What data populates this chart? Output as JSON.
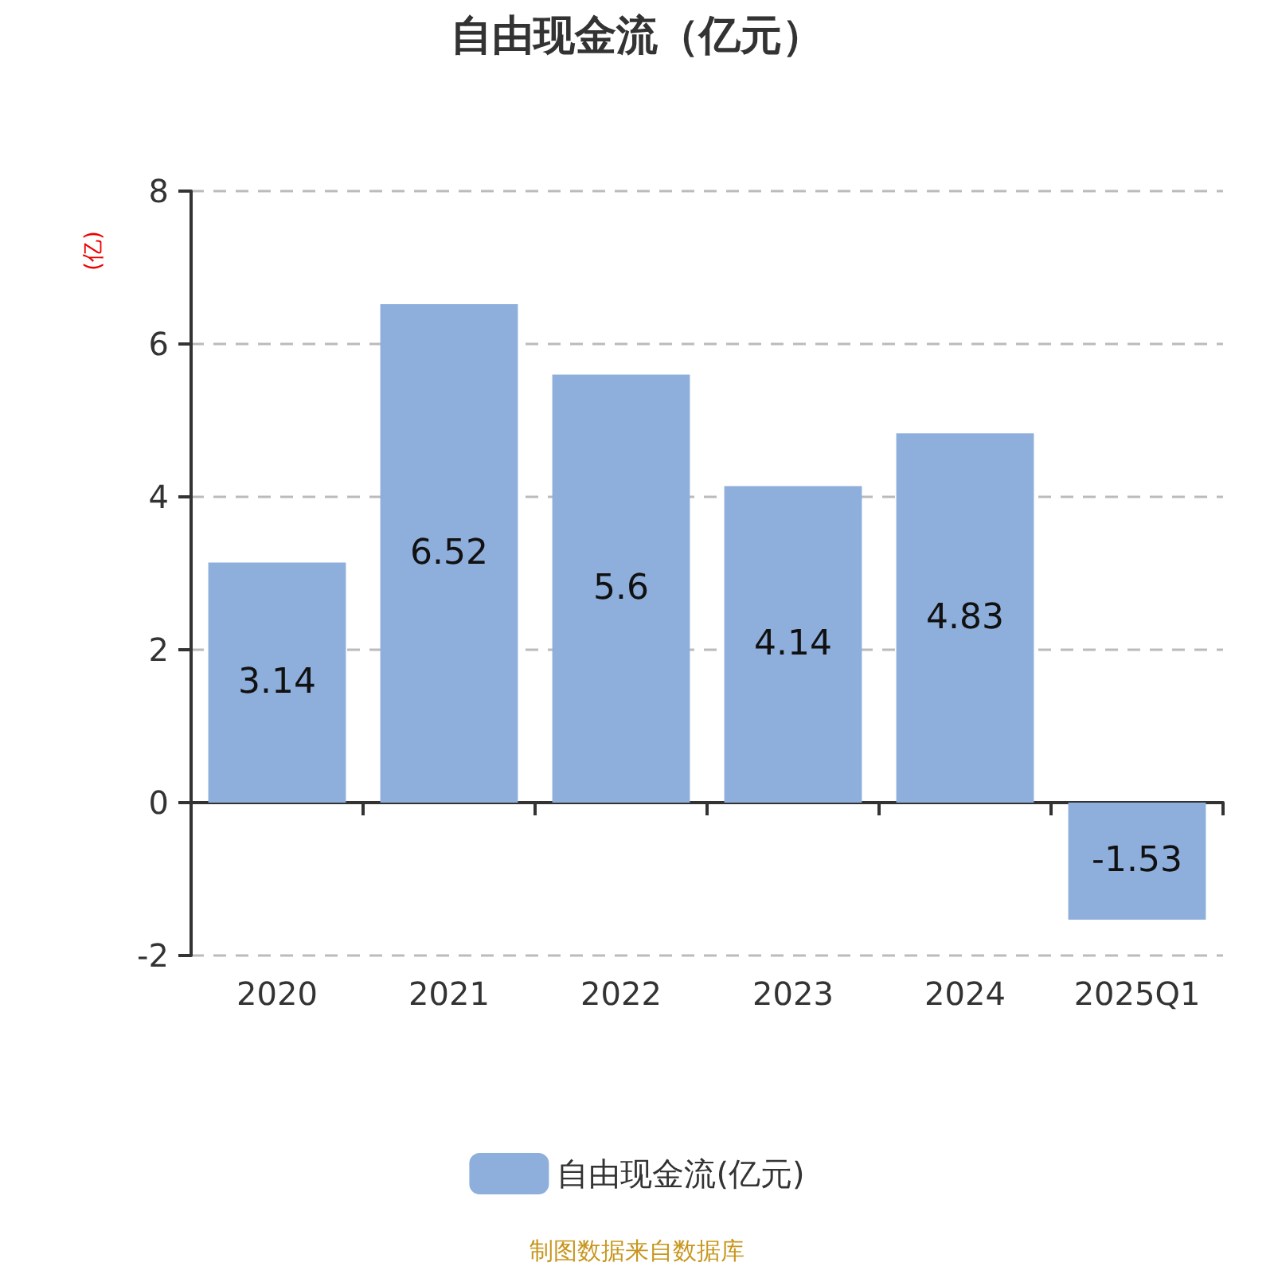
{
  "chart_data": {
    "type": "bar",
    "title": "自由现金流（亿元）",
    "ylabel": "(亿)",
    "categories": [
      "2020",
      "2021",
      "2022",
      "2023",
      "2024",
      "2025Q1"
    ],
    "series": [
      {
        "name": "自由现金流(亿元)",
        "color": "#8eaedb",
        "values": [
          3.14,
          6.52,
          5.6,
          4.14,
          4.83,
          -1.53
        ]
      }
    ],
    "ylim": [
      -2,
      8
    ],
    "yticks": [
      -2,
      0,
      2,
      4,
      6,
      8
    ],
    "grid": "y",
    "legend": "bottom",
    "data_labels": true,
    "annotations": [
      "制图数据来自数据库"
    ]
  }
}
